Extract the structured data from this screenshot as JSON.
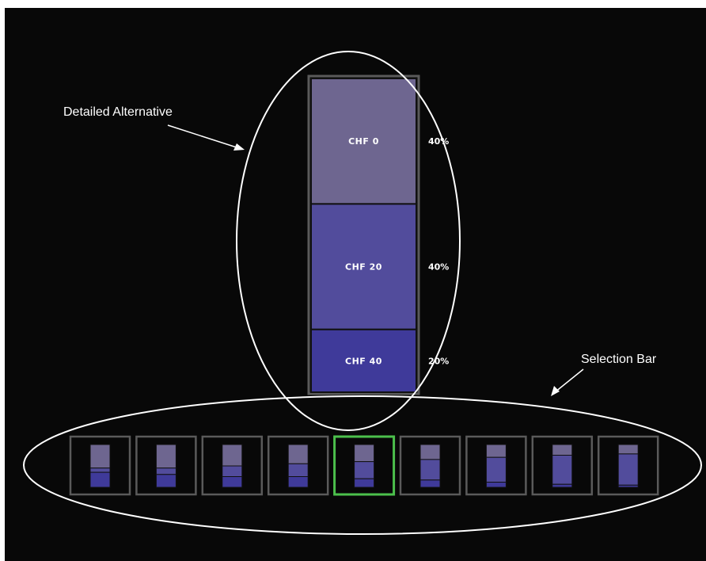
{
  "annotations": {
    "detailed": "Detailed Alternative",
    "selection": "Selection Bar"
  },
  "detail": {
    "segments": [
      {
        "label": "CHF  0",
        "percent": "40%",
        "share": 0.4,
        "color": "#6e6690"
      },
      {
        "label": "CHF  20",
        "percent": "40%",
        "share": 0.4,
        "color": "#524c9c"
      },
      {
        "label": "CHF  40",
        "percent": "20%",
        "share": 0.2,
        "color": "#3f3a9a"
      }
    ]
  },
  "selection": {
    "selected_index": 4,
    "selected_color": "#4cc04c",
    "frame_color": "#5a5a5a",
    "alternatives": [
      [
        0.55,
        0.1,
        0.35
      ],
      [
        0.55,
        0.15,
        0.3
      ],
      [
        0.5,
        0.25,
        0.25
      ],
      [
        0.45,
        0.3,
        0.25
      ],
      [
        0.4,
        0.4,
        0.2
      ],
      [
        0.35,
        0.48,
        0.17
      ],
      [
        0.3,
        0.58,
        0.12
      ],
      [
        0.25,
        0.68,
        0.07
      ],
      [
        0.22,
        0.73,
        0.05
      ]
    ]
  }
}
